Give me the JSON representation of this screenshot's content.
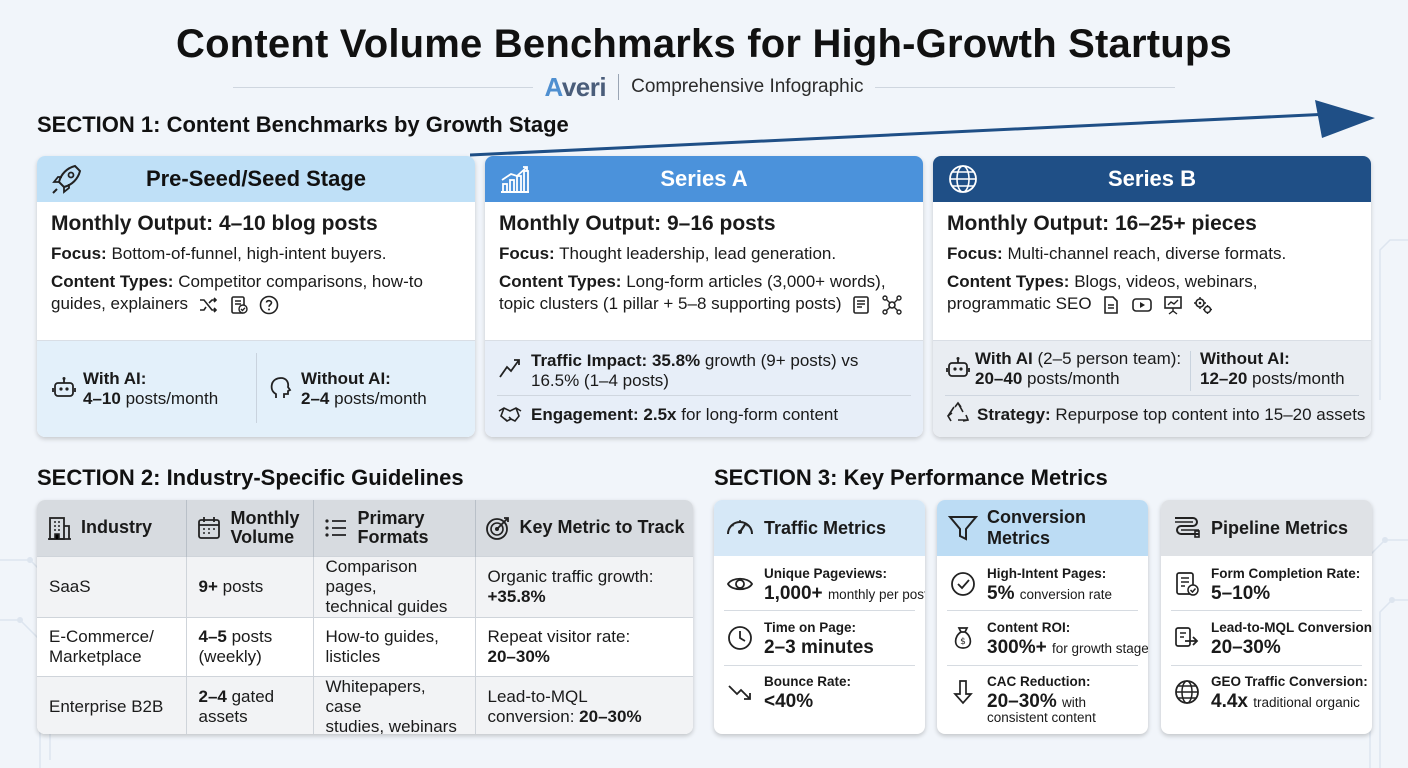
{
  "header": {
    "title": "Content Volume Benchmarks for High-Growth Startups",
    "brand": "Averi",
    "brand_first": "A",
    "brand_rest": "veri",
    "subtitle": "Comprehensive Infographic"
  },
  "section1": {
    "title": "SECTION 1: Content Benchmarks by Growth Stage",
    "stages": [
      {
        "name": "Pre-Seed/Seed Stage",
        "icon": "rocket-icon",
        "output_label": "Monthly Output:",
        "output_value": "4–10 blog posts",
        "focus_label": "Focus:",
        "focus_value": "Bottom-of-funnel, high-intent buyers.",
        "types_label": "Content Types:",
        "types_line1": "Competitor comparisons, how-to",
        "types_line2": "guides, explainers",
        "with_ai_label": "With AI:",
        "with_ai_value": "4–10",
        "with_ai_unit": "posts/month",
        "without_ai_label": "Without AI:",
        "without_ai_value": "2–4",
        "without_ai_unit": "posts/month"
      },
      {
        "name": "Series A",
        "icon": "growth-chart-icon",
        "output_label": "Monthly Output:",
        "output_value": "9–16 posts",
        "focus_label": "Focus:",
        "focus_value": "Thought leadership, lead generation.",
        "types_label": "Content Types:",
        "types_line1": "Long-form articles (3,000+ words),",
        "types_line2": "topic clusters (1 pillar + 5–8 supporting posts)",
        "traffic_label": "Traffic Impact:",
        "traffic_value": "35.8%",
        "traffic_rest1": "growth (9+ posts) vs",
        "traffic_rest2": "16.5% (1–4 posts)",
        "engagement_label": "Engagement:",
        "engagement_value": "2.5x",
        "engagement_rest": "for long-form content"
      },
      {
        "name": "Series B",
        "icon": "globe-icon",
        "output_label": "Monthly Output:",
        "output_value": "16–25+ pieces",
        "focus_label": "Focus:",
        "focus_value": "Multi-channel reach, diverse formats.",
        "types_label": "Content Types:",
        "types_line1": "Blogs, videos, webinars,",
        "types_line2": "programmatic SEO",
        "with_ai_label": "With AI",
        "with_ai_team": "(2–5 person team):",
        "with_ai_value": "20–40",
        "with_ai_unit": "posts/month",
        "without_ai_label": "Without AI:",
        "without_ai_value": "12–20",
        "without_ai_unit": "posts/month",
        "strategy_label": "Strategy:",
        "strategy_value": "Repurpose top content into 15–20 assets"
      }
    ]
  },
  "section2": {
    "title": "SECTION 2: Industry-Specific Guidelines",
    "headers": {
      "industry": "Industry",
      "volume1": "Monthly",
      "volume2": "Volume",
      "formats1": "Primary",
      "formats2": "Formats",
      "metric": "Key Metric to Track"
    },
    "rows": [
      {
        "industry1": "SaaS",
        "industry2": "",
        "vol_bold": "9+",
        "vol_rest": " posts",
        "vol2": "",
        "fmt1": "Comparison pages,",
        "fmt2": "technical guides",
        "met1": "Organic traffic growth:",
        "met2": "+35.8%"
      },
      {
        "industry1": "E-Commerce/",
        "industry2": "Marketplace",
        "vol_bold": "4–5",
        "vol_rest": " posts",
        "vol2": "(weekly)",
        "fmt1": "How-to guides,",
        "fmt2": "listicles",
        "met1": "Repeat visitor rate:",
        "met2": "20–30%"
      },
      {
        "industry1": "Enterprise B2B",
        "industry2": "",
        "vol_bold": "2–4",
        "vol_rest": " gated",
        "vol2": "assets",
        "fmt1": "Whitepapers, case",
        "fmt2": "studies, webinars",
        "met1": "Lead-to-MQL",
        "met2_pre": "conversion: ",
        "met2": "20–30%"
      }
    ]
  },
  "section3": {
    "title": "SECTION 3: Key Performance Metrics",
    "cards": [
      {
        "title": "Traffic Metrics",
        "icon": "speedometer-icon",
        "items": [
          {
            "icon": "eye-icon",
            "label": "Unique Pageviews:",
            "value": "1,000+",
            "note": "monthly per post"
          },
          {
            "icon": "clock-icon",
            "label": "Time on Page:",
            "value": "2–3 minutes",
            "note": ""
          },
          {
            "icon": "trend-down-icon",
            "label": "Bounce Rate:",
            "value": "<40%",
            "note": ""
          }
        ]
      },
      {
        "title": "Conversion Metrics",
        "icon": "funnel-icon",
        "items": [
          {
            "icon": "check-circle-icon",
            "label": "High-Intent Pages:",
            "value": "5%",
            "note": "conversion rate"
          },
          {
            "icon": "money-bag-icon",
            "label": "Content ROI:",
            "value": "300%+",
            "note": "for growth stage"
          },
          {
            "icon": "arrow-down-icon",
            "label": "CAC Reduction:",
            "value": "20–30%",
            "note": "with",
            "note2": "consistent content"
          }
        ]
      },
      {
        "title": "Pipeline Metrics",
        "icon": "pipeline-icon",
        "items": [
          {
            "icon": "form-check-icon",
            "label": "Form Completion Rate:",
            "value": "5–10%",
            "note": ""
          },
          {
            "icon": "convert-arrow-icon",
            "label": "Lead-to-MQL Conversion:",
            "value": "20–30%",
            "note": ""
          },
          {
            "icon": "globe-icon",
            "label": "GEO Traffic Conversion:",
            "value": "4.4x",
            "note": "traditional organic"
          }
        ]
      }
    ]
  },
  "colors": {
    "seed_header": "#bfe0f7",
    "series_a_header": "#4b92db",
    "series_b_header": "#1f4f86",
    "arrow": "#1f4f86",
    "brand_accent": "#4f8fd0"
  }
}
